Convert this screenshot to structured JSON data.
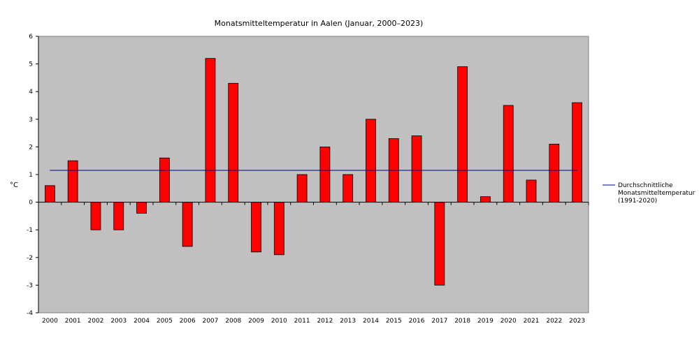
{
  "chart_data": {
    "type": "bar",
    "title": "Monatsmitteltemperatur in Aalen (Januar, 2000–2023)",
    "ylabel": "°C",
    "xlabel": "",
    "ylim": [
      -4,
      6
    ],
    "yticks": [
      6,
      5,
      4,
      3,
      2,
      1,
      0,
      -1,
      -2,
      -3,
      -4
    ],
    "grid": false,
    "legend_position": "right",
    "categories": [
      "2000",
      "2001",
      "2002",
      "2003",
      "2004",
      "2005",
      "2006",
      "2007",
      "2008",
      "2009",
      "2010",
      "2011",
      "2012",
      "2013",
      "2014",
      "2015",
      "2016",
      "2017",
      "2018",
      "2019",
      "2020",
      "2021",
      "2022",
      "2023"
    ],
    "series": [
      {
        "values": [
          0.6,
          1.5,
          -1.0,
          -1.0,
          -0.4,
          1.6,
          -1.6,
          5.2,
          4.3,
          -1.8,
          -1.9,
          1.0,
          2.0,
          1.0,
          3.0,
          2.3,
          2.4,
          -3.0,
          4.9,
          0.2,
          3.5,
          0.8,
          2.1,
          3.6
        ]
      }
    ],
    "reference_line": {
      "value": 1.15,
      "legend_lines": [
        "Durchschnittliche",
        "Monatsmitteltemperatur",
        "(1991-2020)"
      ]
    },
    "colors": {
      "bar": "#ff0000",
      "bar_stroke": "#000000",
      "plot_bg": "#c0c0c0",
      "reference": "#000080"
    }
  }
}
